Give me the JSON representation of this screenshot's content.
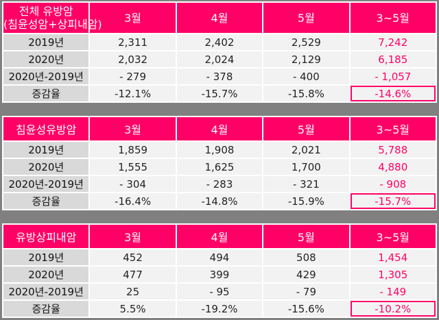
{
  "colors": {
    "accent": "#ff0066",
    "background": "#808080",
    "label_bg": "#d9d9d9",
    "cell_bg": "#f2f2f2"
  },
  "columns": [
    "3월",
    "4월",
    "5월",
    "3~5월"
  ],
  "row_labels": [
    "2019년",
    "2020년",
    "2020년-2019년",
    "증감율"
  ],
  "tables": [
    {
      "title_lines": [
        "전체 유방암",
        "(침윤성암+상피내암)"
      ],
      "rows": [
        [
          "2,311",
          "2,402",
          "2,529",
          "7,242"
        ],
        [
          "2,032",
          "2,024",
          "2,129",
          "6,185"
        ],
        [
          "- 279",
          "- 378",
          "- 400",
          "- 1,057"
        ],
        [
          "-12.1%",
          "-15.7%",
          "-15.8%",
          "-14.6%"
        ]
      ]
    },
    {
      "title_lines": [
        "침윤성유방암"
      ],
      "rows": [
        [
          "1,859",
          "1,908",
          "2,021",
          "5,788"
        ],
        [
          "1,555",
          "1,625",
          "1,700",
          "4,880"
        ],
        [
          "- 304",
          "- 283",
          "- 321",
          "- 908"
        ],
        [
          "-16.4%",
          "-14.8%",
          "-15.9%",
          "-15.7%"
        ]
      ]
    },
    {
      "title_lines": [
        "유방상피내암"
      ],
      "rows": [
        [
          "452",
          "494",
          "508",
          "1,454"
        ],
        [
          "477",
          "399",
          "429",
          "1,305"
        ],
        [
          "25",
          "- 95",
          "- 79",
          "- 149"
        ],
        [
          "5.5%",
          "-19.2%",
          "-15.6%",
          "-10.2%"
        ]
      ]
    }
  ]
}
